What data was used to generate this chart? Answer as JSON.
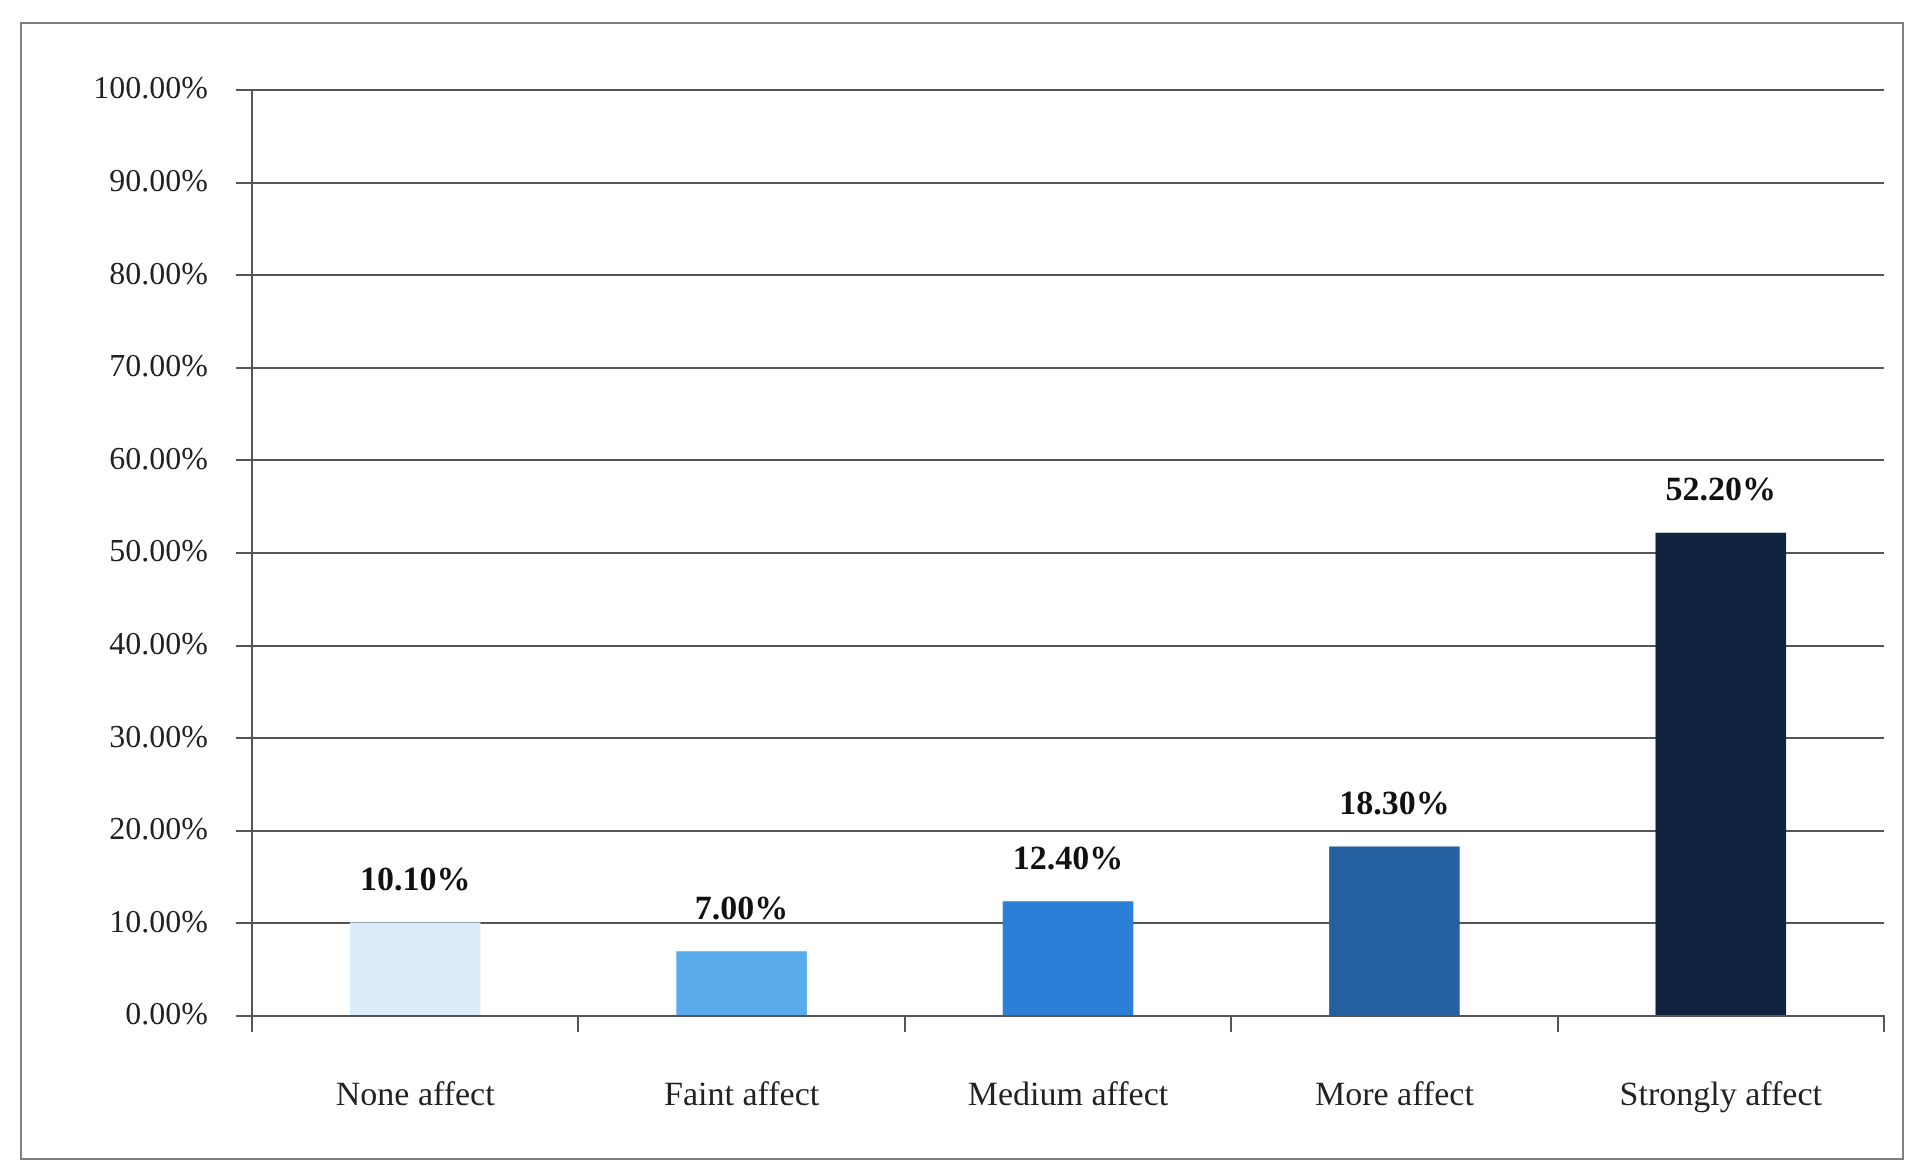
{
  "chart_data": {
    "type": "bar",
    "categories": [
      "None affect",
      "Faint affect",
      "Medium affect",
      "More affect",
      "Strongly affect"
    ],
    "values": [
      10.1,
      7.0,
      12.4,
      18.3,
      52.2
    ],
    "colors": [
      "#dcedf9",
      "#5aabec",
      "#2b7fd6",
      "#245f9f",
      "#0f2340"
    ],
    "value_labels": [
      "10.10%",
      "7.00%",
      "12.40%",
      "18.30%",
      "52.20%"
    ],
    "ylim": [
      0,
      100
    ],
    "yticks": [
      {
        "value": 0,
        "label": "0.00%"
      },
      {
        "value": 10,
        "label": "10.00%"
      },
      {
        "value": 20,
        "label": "20.00%"
      },
      {
        "value": 30,
        "label": "30.00%"
      },
      {
        "value": 40,
        "label": "40.00%"
      },
      {
        "value": 50,
        "label": "50.00%"
      },
      {
        "value": 60,
        "label": "60.00%"
      },
      {
        "value": 70,
        "label": "70.00%"
      },
      {
        "value": 80,
        "label": "80.00%"
      },
      {
        "value": 90,
        "label": "90.00%"
      },
      {
        "value": 100,
        "label": "100.00%"
      }
    ],
    "grid": "y"
  }
}
